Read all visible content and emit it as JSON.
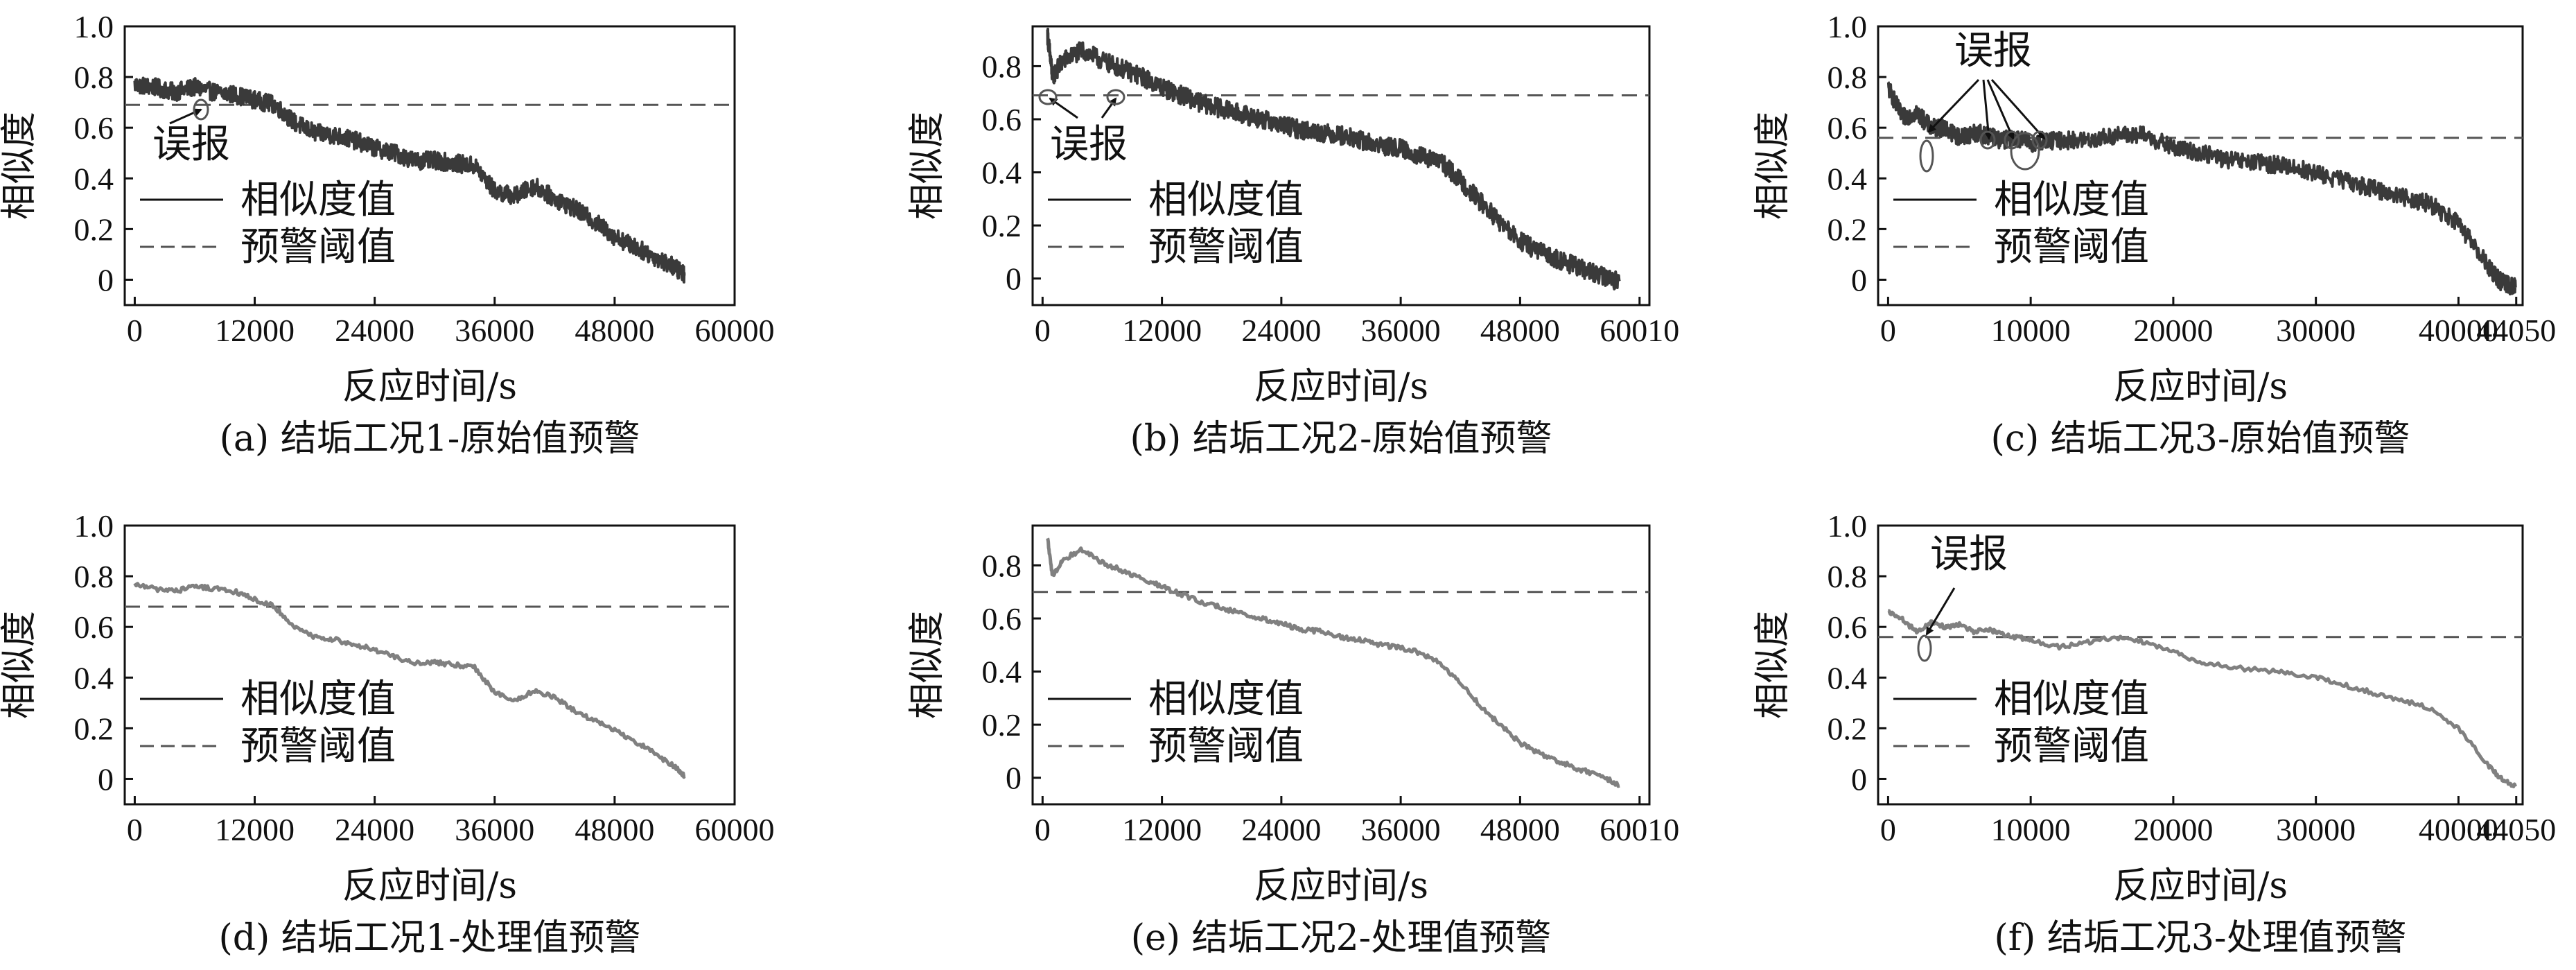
{
  "chart_data": [
    {
      "id": "a",
      "type": "line",
      "caption": "(a) 结垢工况1-原始值预警",
      "xlabel": "反应时间/s",
      "ylabel": "相似度",
      "xlim": [
        -1000,
        60000
      ],
      "ylim": [
        -0.1,
        1.0
      ],
      "xticks": [
        0,
        12000,
        24000,
        36000,
        48000,
        60000
      ],
      "xtick_labels": [
        "0",
        "12000",
        "24000",
        "36000",
        "48000",
        "60000"
      ],
      "yticks": [
        0,
        0.2,
        0.4,
        0.6,
        0.8,
        1.0
      ],
      "ytick_labels": [
        "0",
        "0.2",
        "0.4",
        "0.6",
        "0.8",
        "1.0"
      ],
      "legend": [
        "相似度值",
        "预警阈值"
      ],
      "threshold": 0.69,
      "series_style": "raw",
      "line_color": "#3a3a3a",
      "series": [
        {
          "name": "相似度值",
          "x": [
            0,
            2000,
            4000,
            6000,
            8000,
            10000,
            12000,
            14000,
            16000,
            18000,
            20000,
            22000,
            24000,
            26000,
            28000,
            30000,
            32000,
            34000,
            36000,
            38000,
            40000,
            42000,
            44000,
            46000,
            48000,
            50000,
            52000,
            54000,
            55000
          ],
          "y": [
            0.77,
            0.76,
            0.74,
            0.76,
            0.74,
            0.73,
            0.71,
            0.69,
            0.62,
            0.58,
            0.57,
            0.55,
            0.52,
            0.5,
            0.47,
            0.47,
            0.46,
            0.45,
            0.35,
            0.33,
            0.37,
            0.32,
            0.28,
            0.23,
            0.17,
            0.13,
            0.09,
            0.05,
            0.02
          ]
        }
      ],
      "annotations": [
        {
          "text": "误报",
          "x": 5500,
          "y": 0.66
        }
      ]
    },
    {
      "id": "b",
      "type": "line",
      "caption": "(b) 结垢工况2-原始值预警",
      "xlabel": "反应时间/s",
      "ylabel": "相似度",
      "xlim": [
        -1000,
        61000
      ],
      "ylim": [
        -0.1,
        0.95
      ],
      "xticks": [
        0,
        12000,
        24000,
        36000,
        48000,
        60010
      ],
      "xtick_labels": [
        "0",
        "12000",
        "24000",
        "36000",
        "48000",
        "60010"
      ],
      "yticks": [
        0,
        0.2,
        0.4,
        0.6,
        0.8
      ],
      "ytick_labels": [
        "0",
        "0.2",
        "0.4",
        "0.6",
        "0.8"
      ],
      "legend": [
        "相似度值",
        "预警阈值"
      ],
      "threshold": 0.69,
      "series_style": "raw",
      "line_color": "#3a3a3a",
      "series": [
        {
          "name": "相似度值",
          "x": [
            500,
            1000,
            2000,
            4000,
            6000,
            8000,
            10000,
            12000,
            14000,
            16000,
            18000,
            20000,
            22000,
            24000,
            26000,
            28000,
            30000,
            32000,
            34000,
            36000,
            38000,
            40000,
            42000,
            44000,
            46000,
            48000,
            50000,
            52000,
            54000,
            56000,
            58000
          ],
          "y": [
            0.92,
            0.76,
            0.82,
            0.86,
            0.82,
            0.79,
            0.76,
            0.72,
            0.69,
            0.66,
            0.64,
            0.62,
            0.6,
            0.58,
            0.56,
            0.55,
            0.54,
            0.52,
            0.5,
            0.49,
            0.46,
            0.44,
            0.37,
            0.29,
            0.21,
            0.14,
            0.1,
            0.07,
            0.04,
            0.01,
            -0.01
          ]
        }
      ],
      "annotations": [
        {
          "text": "误报",
          "x": 4000,
          "y": 0.62
        }
      ]
    },
    {
      "id": "c",
      "type": "line",
      "caption": "(c) 结垢工况3-原始值预警",
      "xlabel": "反应时间/s",
      "ylabel": "相似度",
      "xlim": [
        -700,
        44500
      ],
      "ylim": [
        -0.1,
        1.0
      ],
      "xticks": [
        0,
        10000,
        20000,
        30000,
        40000,
        44050
      ],
      "xtick_labels": [
        "0",
        "10000",
        "20000",
        "30000",
        "40000",
        "44050"
      ],
      "yticks": [
        0,
        0.2,
        0.4,
        0.6,
        0.8,
        1.0
      ],
      "ytick_labels": [
        "0",
        "0.2",
        "0.4",
        "0.6",
        "0.8",
        "1.0"
      ],
      "legend": [
        "相似度值",
        "预警阈值"
      ],
      "threshold": 0.56,
      "series_style": "raw",
      "line_color": "#3a3a3a",
      "series": [
        {
          "name": "相似度值",
          "x": [
            0,
            1000,
            2000,
            3000,
            4000,
            5000,
            6000,
            7000,
            8000,
            9000,
            10000,
            12000,
            14000,
            16000,
            18000,
            20000,
            22000,
            24000,
            26000,
            28000,
            30000,
            32000,
            34000,
            36000,
            38000,
            40000,
            42000,
            43000,
            44000
          ],
          "y": [
            0.76,
            0.64,
            0.66,
            0.6,
            0.6,
            0.56,
            0.58,
            0.57,
            0.55,
            0.56,
            0.54,
            0.55,
            0.55,
            0.57,
            0.57,
            0.52,
            0.5,
            0.47,
            0.46,
            0.45,
            0.42,
            0.39,
            0.36,
            0.33,
            0.3,
            0.22,
            0.06,
            -0.01,
            -0.03
          ]
        }
      ],
      "annotations": [
        {
          "text": "误报",
          "x": 7000,
          "y": 0.85
        }
      ]
    },
    {
      "id": "d",
      "type": "line",
      "caption": "(d) 结垢工况1-处理值预警",
      "xlabel": "反应时间/s",
      "ylabel": "相似度",
      "xlim": [
        -1000,
        60000
      ],
      "ylim": [
        -0.1,
        1.0
      ],
      "xticks": [
        0,
        12000,
        24000,
        36000,
        48000,
        60000
      ],
      "xtick_labels": [
        "0",
        "12000",
        "24000",
        "36000",
        "48000",
        "60000"
      ],
      "yticks": [
        0,
        0.2,
        0.4,
        0.6,
        0.8,
        1.0
      ],
      "ytick_labels": [
        "0",
        "0.2",
        "0.4",
        "0.6",
        "0.8",
        "1.0"
      ],
      "legend": [
        "相似度值",
        "预警阈值"
      ],
      "threshold": 0.68,
      "series_style": "smooth",
      "line_color": "#808080",
      "series": [
        {
          "name": "相似度值",
          "x": [
            0,
            2000,
            4000,
            6000,
            8000,
            10000,
            12000,
            14000,
            16000,
            18000,
            20000,
            22000,
            24000,
            26000,
            28000,
            30000,
            32000,
            34000,
            36000,
            38000,
            40000,
            42000,
            44000,
            46000,
            48000,
            50000,
            52000,
            54000,
            55000
          ],
          "y": [
            0.77,
            0.75,
            0.74,
            0.76,
            0.75,
            0.74,
            0.71,
            0.68,
            0.6,
            0.56,
            0.55,
            0.53,
            0.51,
            0.48,
            0.46,
            0.46,
            0.45,
            0.44,
            0.34,
            0.31,
            0.35,
            0.32,
            0.27,
            0.23,
            0.19,
            0.15,
            0.1,
            0.05,
            0.01
          ]
        }
      ],
      "annotations": []
    },
    {
      "id": "e",
      "type": "line",
      "caption": "(e) 结垢工况2-处理值预警",
      "xlabel": "反应时间/s",
      "ylabel": "相似度",
      "xlim": [
        -1000,
        61000
      ],
      "ylim": [
        -0.1,
        0.95
      ],
      "xticks": [
        0,
        12000,
        24000,
        36000,
        48000,
        60010
      ],
      "xtick_labels": [
        "0",
        "12000",
        "24000",
        "36000",
        "48000",
        "60010"
      ],
      "yticks": [
        0,
        0.2,
        0.4,
        0.6,
        0.8
      ],
      "ytick_labels": [
        "0",
        "0.2",
        "0.4",
        "0.6",
        "0.8"
      ],
      "legend": [
        "相似度值",
        "预警阈值"
      ],
      "threshold": 0.7,
      "series_style": "smooth",
      "line_color": "#808080",
      "series": [
        {
          "name": "相似度值",
          "x": [
            500,
            1000,
            2000,
            4000,
            6000,
            8000,
            10000,
            12000,
            14000,
            16000,
            18000,
            20000,
            22000,
            24000,
            26000,
            28000,
            30000,
            32000,
            34000,
            36000,
            38000,
            40000,
            42000,
            44000,
            46000,
            48000,
            50000,
            52000,
            54000,
            56000,
            58000
          ],
          "y": [
            0.9,
            0.76,
            0.82,
            0.86,
            0.81,
            0.78,
            0.75,
            0.72,
            0.69,
            0.66,
            0.64,
            0.62,
            0.6,
            0.58,
            0.56,
            0.55,
            0.53,
            0.52,
            0.5,
            0.49,
            0.47,
            0.43,
            0.36,
            0.27,
            0.2,
            0.13,
            0.09,
            0.06,
            0.03,
            0.01,
            -0.03
          ]
        }
      ],
      "annotations": []
    },
    {
      "id": "f",
      "type": "line",
      "caption": "(f) 结垢工况3-处理值预警",
      "xlabel": "反应时间/s",
      "ylabel": "相似度",
      "xlim": [
        -700,
        44500
      ],
      "ylim": [
        -0.1,
        1.0
      ],
      "xticks": [
        0,
        10000,
        20000,
        30000,
        40000,
        44050
      ],
      "xtick_labels": [
        "0",
        "10000",
        "20000",
        "30000",
        "40000",
        "44050"
      ],
      "yticks": [
        0,
        0.2,
        0.4,
        0.6,
        0.8,
        1.0
      ],
      "ytick_labels": [
        "0",
        "0.2",
        "0.4",
        "0.6",
        "0.8",
        "1.0"
      ],
      "legend": [
        "相似度值",
        "预警阈值"
      ],
      "threshold": 0.56,
      "series_style": "smooth",
      "line_color": "#808080",
      "series": [
        {
          "name": "相似度值",
          "x": [
            0,
            1000,
            2000,
            3000,
            4000,
            5000,
            6000,
            7000,
            8000,
            9000,
            10000,
            12000,
            14000,
            16000,
            18000,
            20000,
            22000,
            24000,
            26000,
            28000,
            30000,
            32000,
            34000,
            36000,
            38000,
            40000,
            42000,
            43000,
            44000
          ],
          "y": [
            0.66,
            0.63,
            0.58,
            0.62,
            0.6,
            0.61,
            0.58,
            0.59,
            0.57,
            0.56,
            0.55,
            0.52,
            0.54,
            0.56,
            0.54,
            0.5,
            0.46,
            0.44,
            0.43,
            0.42,
            0.4,
            0.37,
            0.34,
            0.31,
            0.28,
            0.2,
            0.06,
            0.0,
            -0.03
          ]
        }
      ],
      "annotations": [
        {
          "text": "误报",
          "x": 2000,
          "y": 0.83
        }
      ]
    }
  ]
}
